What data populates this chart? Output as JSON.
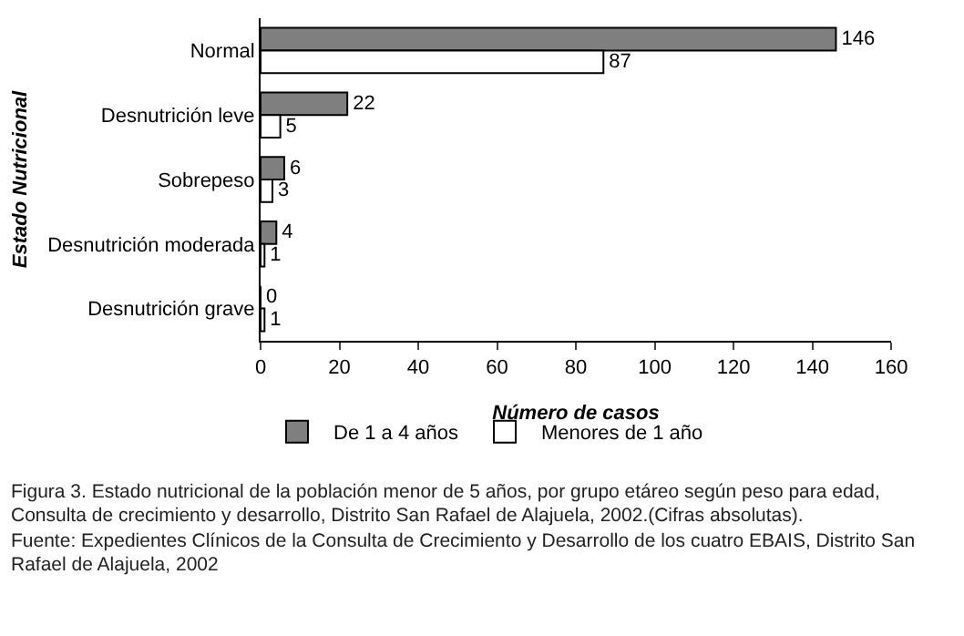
{
  "chart_data": {
    "type": "bar",
    "orientation": "horizontal",
    "ylabel": "Estado Nutricional",
    "xlabel": "Número de casos",
    "categories": [
      "Normal",
      "Desnutrición leve",
      "Sobrepeso",
      "Desnutrición moderada",
      "Desnutrición grave"
    ],
    "series": [
      {
        "name": "De 1 a 4 años",
        "color": "#7f7f7f",
        "values": [
          146,
          22,
          6,
          4,
          0
        ]
      },
      {
        "name": "Menores de 1 año",
        "color": "#ffffff",
        "values": [
          87,
          5,
          3,
          1,
          1
        ]
      }
    ],
    "xlim": [
      0,
      160
    ],
    "xticks": [
      0,
      20,
      40,
      60,
      80,
      100,
      120,
      140,
      160
    ],
    "grid": false,
    "legend": "bottom left",
    "data_labels": true,
    "annotations": [
      "Figura 3. Estado nutricional de la población menor de 5 años, por grupo etáreo según peso para edad, Consulta de crecimiento y desarrollo, Distrito San Rafael de Alajuela, 2002.(Cifras absolutas).",
      "Fuente:  Expedientes Clínicos de la Consulta de Crecimiento y Desarrollo de los cuatro EBAIS, Distrito San Rafael de Alajuela, 2002"
    ]
  }
}
